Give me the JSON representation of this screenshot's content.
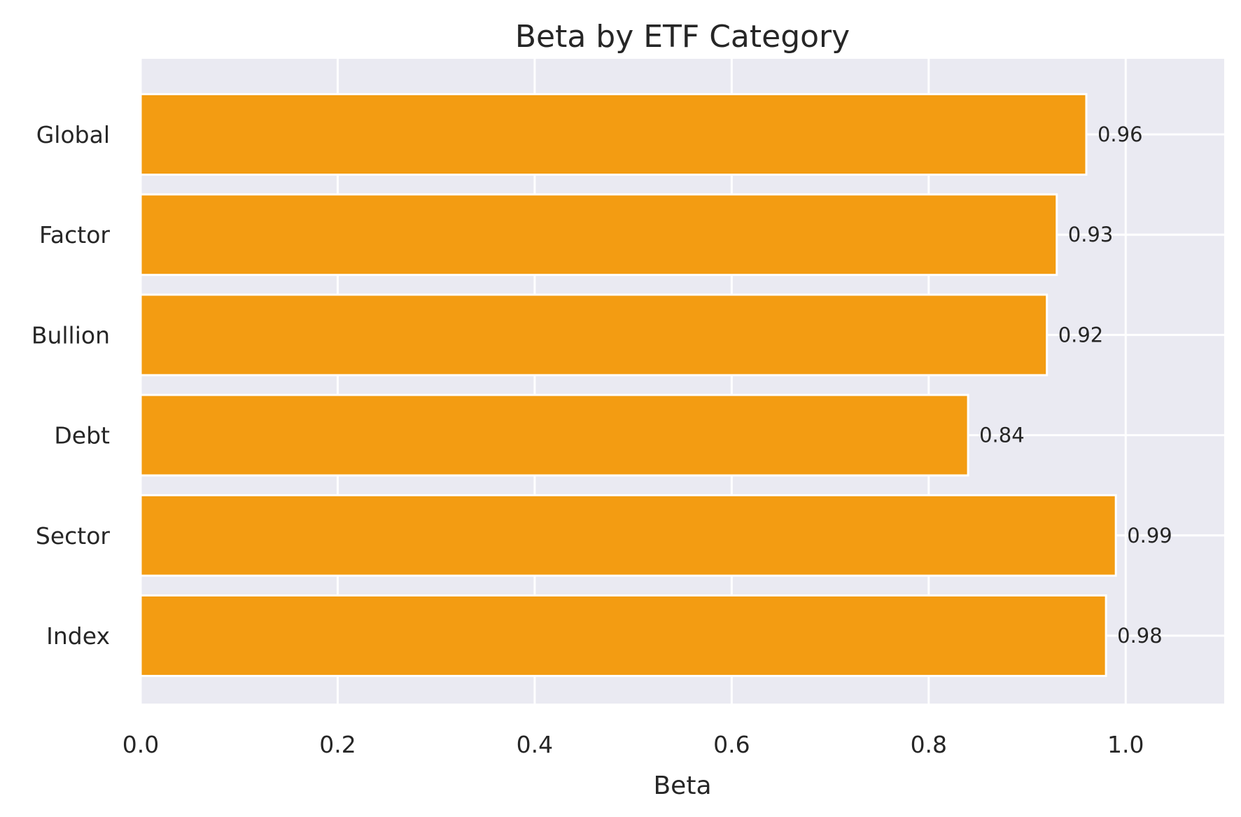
{
  "chart_data": {
    "type": "bar",
    "orientation": "horizontal",
    "title": "Beta by ETF Category",
    "xlabel": "Beta",
    "ylabel": "",
    "categories": [
      "Index",
      "Sector",
      "Debt",
      "Bullion",
      "Factor",
      "Global"
    ],
    "values": [
      0.98,
      0.99,
      0.84,
      0.92,
      0.93,
      0.96
    ],
    "data_labels": [
      "0.98",
      "0.99",
      "0.84",
      "0.92",
      "0.93",
      "0.96"
    ],
    "xlim": [
      0,
      1.1
    ],
    "x_ticks": [
      0.0,
      0.2,
      0.4,
      0.6,
      0.8,
      1.0
    ],
    "x_tick_labels": [
      "0.0",
      "0.2",
      "0.4",
      "0.6",
      "0.8",
      "1.0"
    ],
    "grid": true,
    "bar_color": "#f39c12",
    "background_color": "#eaeaf2",
    "grid_color": "#ffffff"
  }
}
